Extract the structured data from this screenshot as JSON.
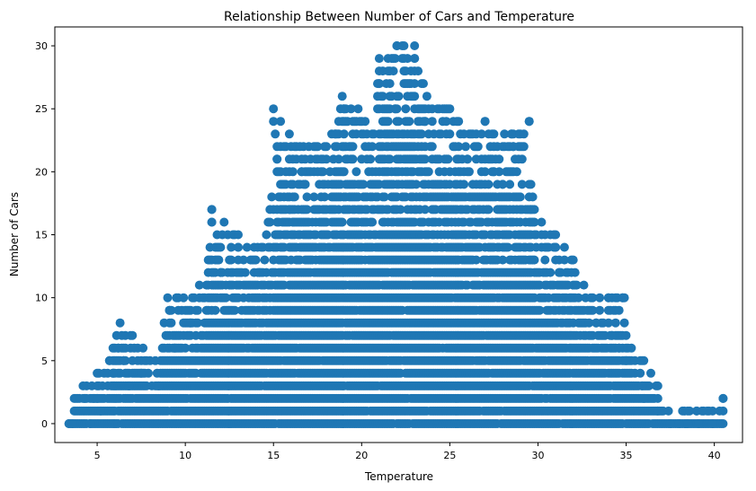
{
  "chart_data": {
    "type": "scatter",
    "title": "Relationship Between Number of Cars and Temperature",
    "xlabel": "Temperature",
    "ylabel": "Number of Cars",
    "xlim": [
      2.6,
      41.6
    ],
    "ylim": [
      -1.5,
      31.5
    ],
    "xticks": [
      5,
      10,
      15,
      20,
      25,
      30,
      35,
      40
    ],
    "yticks": [
      0,
      5,
      10,
      15,
      20,
      25,
      30
    ],
    "grid": false,
    "legend": "none",
    "marker_color": "#1f77b4",
    "x_step": 0.1,
    "y_step": 1,
    "series": [
      {
        "envelope": [
          [
            3.4,
            0
          ],
          [
            3.7,
            2
          ],
          [
            4.2,
            3
          ],
          [
            5.7,
            5
          ],
          [
            6.2,
            8
          ],
          [
            7.0,
            7
          ],
          [
            8.4,
            5
          ],
          [
            9.0,
            10
          ],
          [
            10.5,
            10
          ],
          [
            11.2,
            11
          ],
          [
            11.5,
            17
          ],
          [
            13.0,
            15
          ],
          [
            14.0,
            14
          ],
          [
            15.0,
            18
          ],
          [
            15.4,
            25
          ],
          [
            16.5,
            22
          ],
          [
            18.0,
            22
          ],
          [
            19.0,
            26
          ],
          [
            20.0,
            25
          ],
          [
            20.5,
            23
          ],
          [
            21.0,
            29
          ],
          [
            22.0,
            30
          ],
          [
            23.0,
            30
          ],
          [
            24.0,
            25
          ],
          [
            25.0,
            25
          ],
          [
            26.0,
            23
          ],
          [
            27.0,
            24
          ],
          [
            28.0,
            23
          ],
          [
            29.5,
            24
          ],
          [
            30.0,
            17
          ],
          [
            31.0,
            15
          ],
          [
            32.0,
            13
          ],
          [
            33.0,
            10
          ],
          [
            34.0,
            10
          ],
          [
            34.9,
            10
          ],
          [
            35.5,
            5
          ],
          [
            36.0,
            5
          ],
          [
            36.8,
            3
          ],
          [
            37.5,
            1
          ],
          [
            39.0,
            1
          ],
          [
            39.3,
            1
          ],
          [
            40.5,
            2
          ]
        ],
        "points": [
          [
            3.4,
            0
          ],
          [
            3.6,
            0
          ],
          [
            3.8,
            2
          ],
          [
            4.0,
            2
          ],
          [
            4.2,
            3
          ],
          [
            4.3,
            2
          ],
          [
            4.6,
            0
          ],
          [
            4.8,
            2
          ],
          [
            5.0,
            2
          ],
          [
            5.2,
            1
          ],
          [
            5.6,
            4
          ],
          [
            5.7,
            5
          ],
          [
            5.9,
            4
          ],
          [
            6.2,
            6
          ],
          [
            6.3,
            8
          ],
          [
            6.4,
            7
          ],
          [
            6.5,
            5
          ],
          [
            6.8,
            3
          ],
          [
            7.0,
            7
          ],
          [
            7.1,
            6
          ],
          [
            7.5,
            4
          ],
          [
            8.3,
            5
          ],
          [
            8.5,
            3
          ],
          [
            9.0,
            10
          ],
          [
            9.1,
            9
          ],
          [
            9.2,
            8
          ],
          [
            9.4,
            6
          ],
          [
            9.9,
            10
          ],
          [
            10.1,
            9
          ],
          [
            10.3,
            8
          ],
          [
            10.8,
            11
          ],
          [
            11.3,
            11
          ],
          [
            11.5,
            17
          ],
          [
            11.5,
            16
          ],
          [
            11.9,
            13
          ],
          [
            12.0,
            12
          ],
          [
            12.3,
            10
          ],
          [
            13.0,
            15
          ],
          [
            13.0,
            14
          ],
          [
            13.0,
            13
          ],
          [
            13.0,
            12
          ],
          [
            13.9,
            14
          ],
          [
            14.0,
            13
          ],
          [
            14.2,
            12
          ],
          [
            14.9,
            18
          ],
          [
            15.0,
            25
          ],
          [
            15.0,
            24
          ],
          [
            15.1,
            23
          ],
          [
            15.2,
            22
          ],
          [
            15.2,
            21
          ],
          [
            15.3,
            20
          ],
          [
            15.9,
            17
          ],
          [
            16.1,
            16
          ],
          [
            16.5,
            22
          ],
          [
            16.6,
            21
          ],
          [
            16.6,
            20
          ],
          [
            16.8,
            19
          ],
          [
            17.5,
            22
          ],
          [
            17.7,
            21
          ],
          [
            18.0,
            22
          ],
          [
            18.2,
            20
          ],
          [
            18.5,
            23
          ],
          [
            18.9,
            26
          ],
          [
            19.0,
            25
          ],
          [
            19.0,
            24
          ],
          [
            19.5,
            23
          ],
          [
            19.8,
            25
          ],
          [
            20.0,
            24
          ],
          [
            20.3,
            23
          ],
          [
            20.6,
            23
          ],
          [
            21.0,
            29
          ],
          [
            21.0,
            28
          ],
          [
            21.0,
            27
          ],
          [
            21.1,
            26
          ],
          [
            21.5,
            29
          ],
          [
            21.5,
            28
          ],
          [
            21.6,
            27
          ],
          [
            21.9,
            25
          ],
          [
            22.0,
            30
          ],
          [
            22.3,
            30
          ],
          [
            22.4,
            29
          ],
          [
            22.5,
            28
          ],
          [
            22.6,
            27
          ],
          [
            22.8,
            26
          ],
          [
            23.0,
            30
          ],
          [
            23.0,
            29
          ],
          [
            23.3,
            25
          ],
          [
            23.6,
            24
          ],
          [
            24.0,
            25
          ],
          [
            24.5,
            23
          ],
          [
            25.0,
            25
          ],
          [
            25.3,
            22
          ],
          [
            25.8,
            23
          ],
          [
            26.0,
            21
          ],
          [
            26.5,
            22
          ],
          [
            27.0,
            24
          ],
          [
            27.2,
            23
          ],
          [
            27.3,
            21
          ],
          [
            27.5,
            20
          ],
          [
            28.0,
            19
          ],
          [
            28.5,
            23
          ],
          [
            28.6,
            22
          ],
          [
            28.7,
            21
          ],
          [
            28.8,
            20
          ],
          [
            29.0,
            18
          ],
          [
            29.5,
            24
          ],
          [
            29.6,
            17
          ],
          [
            29.8,
            16
          ],
          [
            30.5,
            14
          ],
          [
            31.0,
            15
          ],
          [
            31.0,
            14
          ],
          [
            31.2,
            12
          ],
          [
            31.6,
            11
          ],
          [
            32.0,
            13
          ],
          [
            32.1,
            12
          ],
          [
            32.2,
            11
          ],
          [
            32.8,
            9
          ],
          [
            33.0,
            10
          ],
          [
            33.3,
            8
          ],
          [
            34.0,
            10
          ],
          [
            34.0,
            9
          ],
          [
            34.2,
            7
          ],
          [
            34.6,
            6
          ],
          [
            34.8,
            10
          ],
          [
            35.0,
            5
          ],
          [
            35.2,
            4
          ],
          [
            35.5,
            5
          ],
          [
            35.8,
            5
          ],
          [
            35.9,
            3
          ],
          [
            36.0,
            2
          ],
          [
            36.8,
            3
          ],
          [
            36.8,
            1
          ],
          [
            37.5,
            0
          ],
          [
            38.0,
            0
          ],
          [
            38.5,
            0
          ],
          [
            39.0,
            1
          ],
          [
            39.1,
            0
          ],
          [
            39.3,
            1
          ],
          [
            39.9,
            0
          ],
          [
            40.5,
            2
          ]
        ]
      }
    ]
  }
}
